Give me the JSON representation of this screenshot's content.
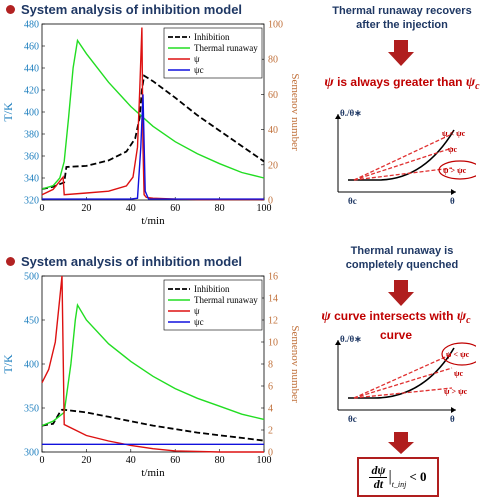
{
  "header1": "System analysis of inhibition model",
  "header2": "System analysis of inhibition model",
  "note1": {
    "line1": "Thermal runaway recovers",
    "line2": "after the injection"
  },
  "note2": {
    "prefix": "ψ",
    "text": "is always greater than",
    "psi_c": "ψ",
    "c": "c"
  },
  "note3": {
    "line1": "Thermal runaway is",
    "line2": "completely quenched"
  },
  "note4": {
    "prefix": "ψ",
    "text": "curve intersects with",
    "psi_c": "ψ",
    "c": "c",
    "suffix": "curve"
  },
  "formula": {
    "num": "dψ",
    "den": "dt",
    "sub": "t_inj",
    "rel": "< 0"
  },
  "colors": {
    "accent_red": "#c00000",
    "navy": "#1f3864",
    "axis_blue": "#1e7fbf",
    "axis_orange": "#c0703a"
  },
  "chart_data": [
    {
      "type": "line",
      "title": "",
      "xlabel": "t/min",
      "ylabel": "T/K",
      "y2label": "Semenov number",
      "xlim": [
        0,
        100
      ],
      "ylim": [
        320,
        480
      ],
      "y2lim": [
        0,
        100
      ],
      "xticks": [
        0,
        20,
        40,
        60,
        80,
        100
      ],
      "yticks": [
        320,
        340,
        360,
        380,
        400,
        420,
        440,
        460,
        480
      ],
      "y2ticks": [
        0,
        20,
        40,
        60,
        80,
        100
      ],
      "legend": "top-right",
      "series": [
        {
          "name": "Inhibition",
          "axis": "left",
          "color": "#000000",
          "dash": true,
          "x": [
            0,
            5,
            10,
            11,
            20,
            30,
            38,
            42,
            44,
            45,
            46,
            50,
            60,
            70,
            80,
            90,
            100
          ],
          "y": [
            330,
            332,
            336,
            350,
            351,
            356,
            364,
            376,
            395,
            420,
            433,
            428,
            413,
            397,
            383,
            369,
            355
          ]
        },
        {
          "name": "Thermal runaway",
          "axis": "left",
          "color": "#22dd22",
          "x": [
            0,
            5,
            8,
            10,
            12,
            14,
            16,
            20,
            30,
            40,
            50,
            60,
            70,
            80,
            90,
            100
          ],
          "y": [
            330,
            333,
            340,
            355,
            395,
            440,
            465,
            453,
            427,
            405,
            387,
            373,
            362,
            353,
            345,
            340
          ]
        },
        {
          "name": "ψ",
          "axis": "right",
          "color": "#dd1111",
          "x": [
            0,
            5,
            9.5,
            10,
            20,
            30,
            38,
            41,
            43,
            44,
            45,
            45.5,
            46,
            47,
            50,
            60,
            70,
            80,
            90,
            100
          ],
          "y": [
            3,
            6,
            13,
            3,
            4,
            5,
            8,
            13,
            30,
            62,
            98,
            30,
            3,
            1.5,
            1,
            0.5,
            0.3,
            0.3,
            0.3,
            0.3
          ]
        },
        {
          "name": "ψc",
          "axis": "right",
          "color": "#1111dd",
          "x": [
            0,
            40,
            43,
            44.5,
            45.5,
            46.5,
            48,
            60,
            100
          ],
          "y": [
            0.5,
            0.5,
            1,
            30,
            60,
            5,
            0.5,
            0.5,
            0.5
          ]
        }
      ]
    },
    {
      "type": "line",
      "title": "",
      "xlabel": "t/min",
      "ylabel": "T/K",
      "y2label": "Semenov number",
      "xlim": [
        0,
        100
      ],
      "ylim": [
        300,
        500
      ],
      "y2lim": [
        0,
        16
      ],
      "xticks": [
        0,
        20,
        40,
        60,
        80,
        100
      ],
      "yticks": [
        300,
        350,
        400,
        450,
        500
      ],
      "y2ticks": [
        0,
        2,
        4,
        6,
        8,
        10,
        12,
        14,
        16
      ],
      "legend": "top-right",
      "series": [
        {
          "name": "Inhibition",
          "axis": "left",
          "color": "#000000",
          "dash": true,
          "x": [
            0,
            5,
            8,
            9,
            10,
            20,
            30,
            40,
            50,
            60,
            70,
            80,
            90,
            100
          ],
          "y": [
            330,
            332,
            345,
            348,
            348,
            345,
            340,
            335,
            330,
            326,
            322,
            319,
            316,
            313
          ]
        },
        {
          "name": "Thermal runaway",
          "axis": "left",
          "color": "#22dd22",
          "x": [
            0,
            5,
            10,
            13,
            15,
            16,
            20,
            30,
            40,
            50,
            60,
            70,
            80,
            90,
            100
          ],
          "y": [
            330,
            335,
            345,
            400,
            450,
            467,
            450,
            423,
            403,
            386,
            372,
            361,
            352,
            343,
            337
          ]
        },
        {
          "name": "ψ",
          "axis": "right",
          "color": "#dd1111",
          "x": [
            0,
            3,
            6,
            8,
            9,
            10,
            15,
            20,
            30,
            40,
            50,
            60,
            70,
            80,
            100
          ],
          "y": [
            6.3,
            7.5,
            10,
            14,
            16,
            2.5,
            2,
            1.5,
            1,
            0.6,
            0.3,
            0.1,
            0.05,
            0,
            0
          ]
        },
        {
          "name": "ψc",
          "axis": "right",
          "color": "#1111dd",
          "x": [
            0,
            100
          ],
          "y": [
            0.7,
            0.7
          ]
        }
      ]
    }
  ],
  "sketch1": {
    "ylabel": "θ./θ∗",
    "xlabel": "θ",
    "theta_c": "θc",
    "labels": [
      "ψ < ψc",
      "ψc",
      "ψ > ψc"
    ]
  },
  "sketch2": {
    "ylabel": "θ./θ∗",
    "xlabel": "θ",
    "theta_c": "θc",
    "labels": [
      "ψ < ψc",
      "ψc",
      "ψ > ψc"
    ]
  }
}
